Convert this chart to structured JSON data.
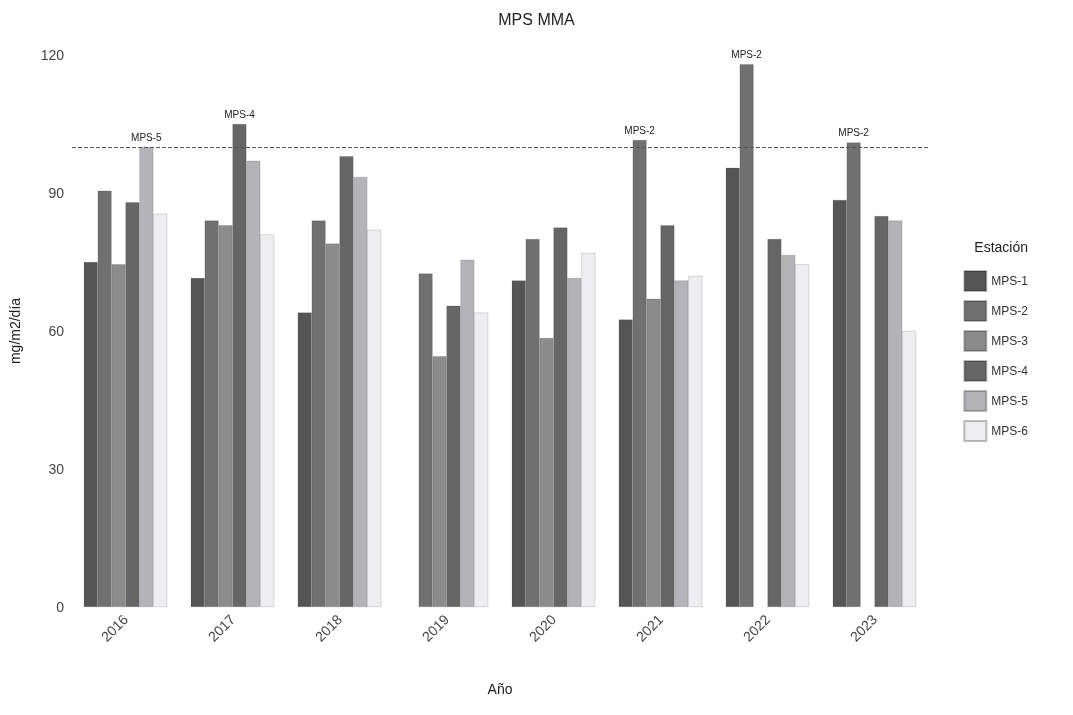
{
  "chart_data": {
    "type": "bar",
    "title": "MPS MMA",
    "xlabel": "Año",
    "ylabel": "mg/m2/día",
    "legend_title": "Estación",
    "categories": [
      "2016",
      "2017",
      "2018",
      "2019",
      "2020",
      "2021",
      "2022",
      "2023"
    ],
    "series": [
      {
        "name": "MPS-1",
        "color": "#555555",
        "values": [
          75,
          71.5,
          64,
          null,
          71,
          62.5,
          95.5,
          88.5
        ]
      },
      {
        "name": "MPS-2",
        "color": "#707070",
        "values": [
          90.5,
          84,
          84,
          72.5,
          80,
          101.5,
          118,
          101
        ]
      },
      {
        "name": "MPS-3",
        "color": "#8c8c8c",
        "values": [
          74.5,
          83,
          79,
          54.5,
          58.5,
          67,
          null,
          null
        ]
      },
      {
        "name": "MPS-4",
        "color": "#666666",
        "values": [
          88,
          105,
          98,
          65.5,
          82.5,
          83,
          80,
          85
        ]
      },
      {
        "name": "MPS-5",
        "color": "#b4b4b8",
        "values": [
          100,
          97,
          93.5,
          75.5,
          71.5,
          71,
          76.5,
          84
        ]
      },
      {
        "name": "MPS-6",
        "color": "#eeeef0",
        "values": [
          85.5,
          81,
          82,
          64,
          77,
          72,
          74.5,
          60
        ]
      }
    ],
    "ylim": [
      0,
      120
    ],
    "yticks": [
      0,
      30,
      60,
      90,
      120
    ],
    "grid": false,
    "legend": "right",
    "ref_lines": [
      {
        "axis": "y",
        "value": 100,
        "line_style": "dashed",
        "color": "#555555"
      }
    ],
    "annotations": [
      {
        "text": "MPS-5",
        "x": "2016",
        "y": 100
      },
      "MPS-4",
      {
        "text": "MPS-2",
        "x": "2021",
        "y": 101.5
      },
      {
        "text": "MPS-2",
        "x": "2022",
        "y": 118
      },
      {
        "text": "MPS-2",
        "x": "2023",
        "y": 101
      }
    ]
  }
}
